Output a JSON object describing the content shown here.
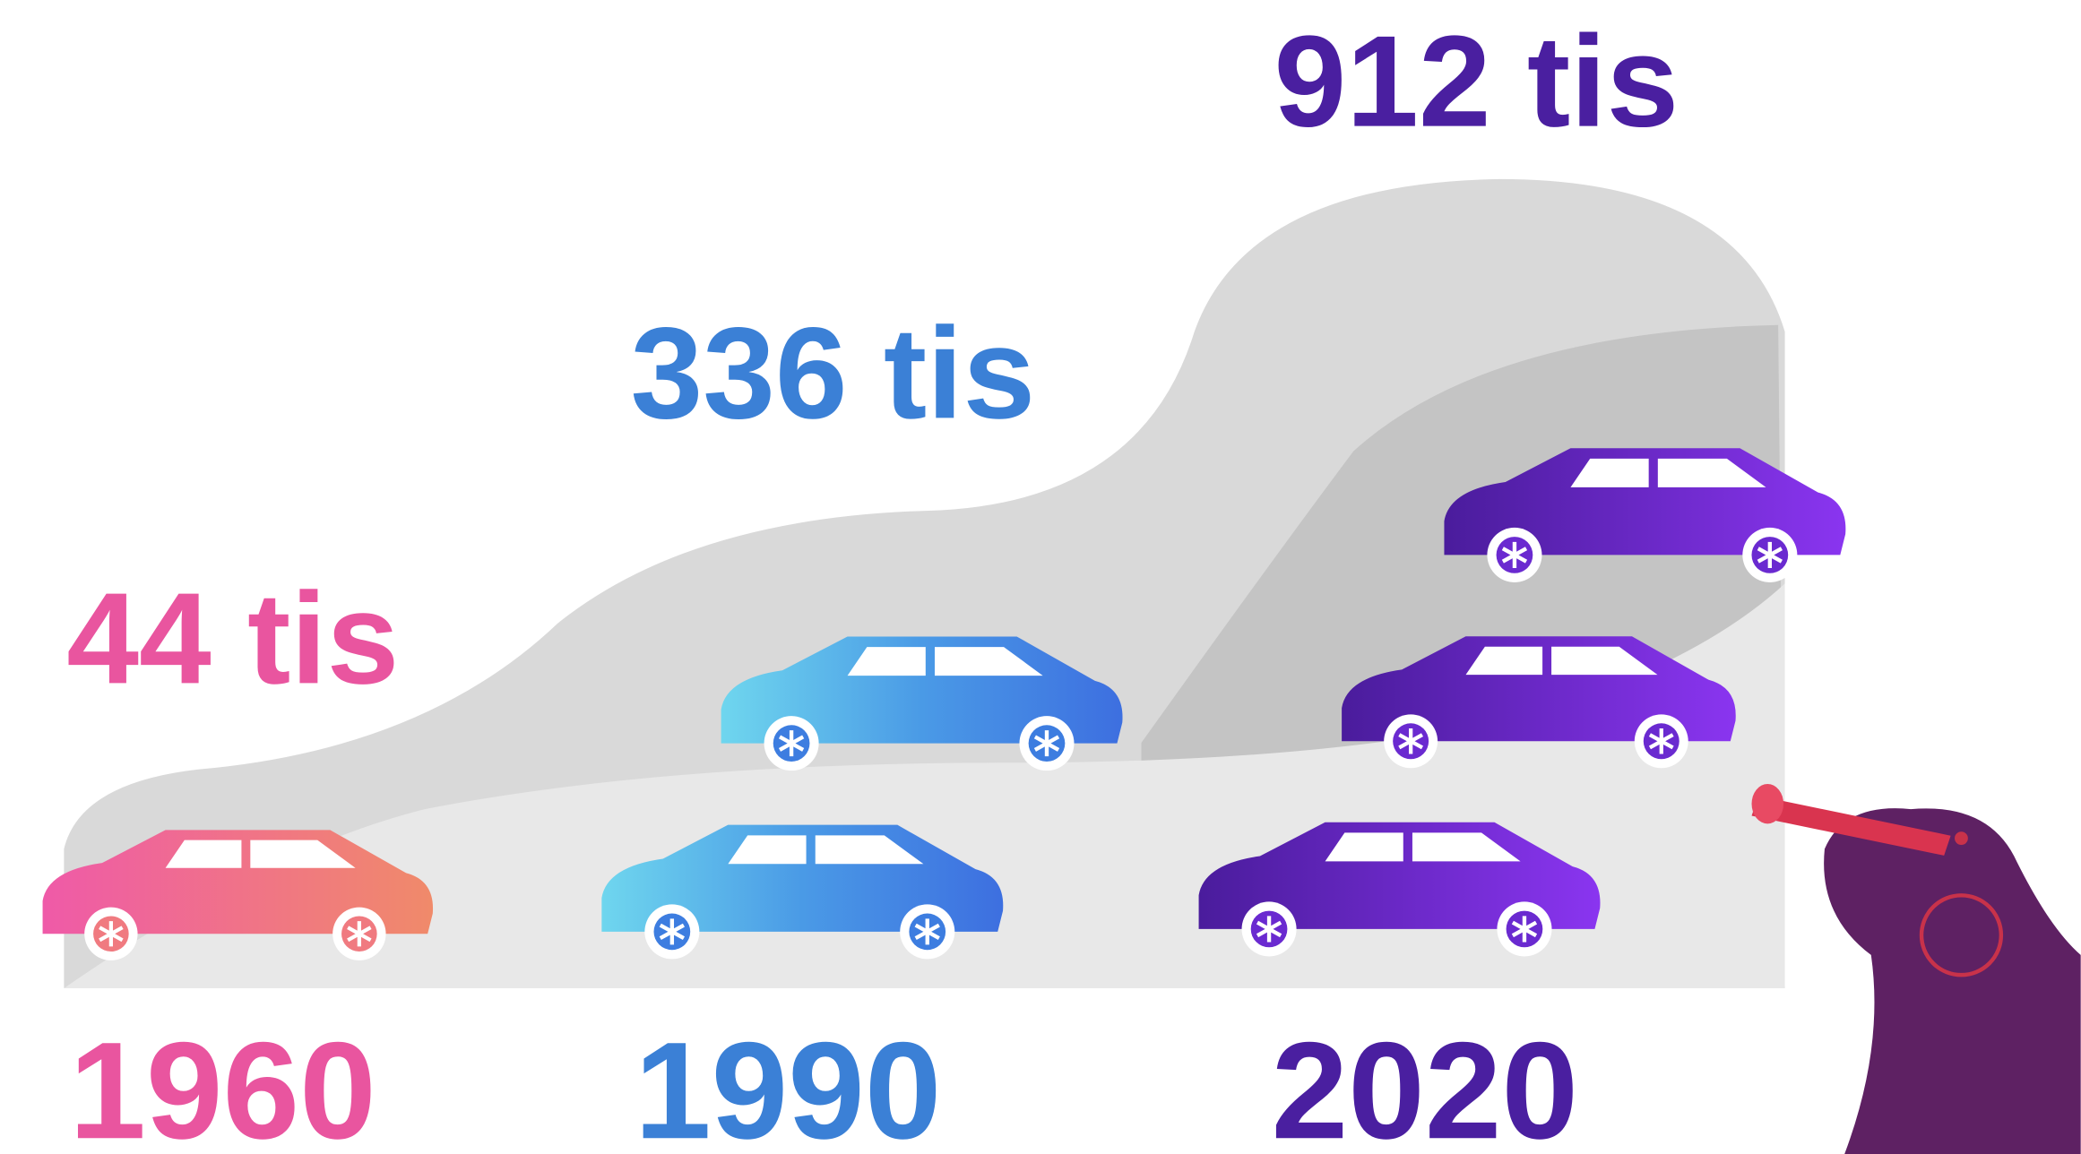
{
  "items": [
    {
      "amount": "44 tis",
      "year": "1960"
    },
    {
      "amount": "336 tis",
      "year": "1990"
    },
    {
      "amount": "912 tis",
      "year": "2020"
    }
  ]
}
